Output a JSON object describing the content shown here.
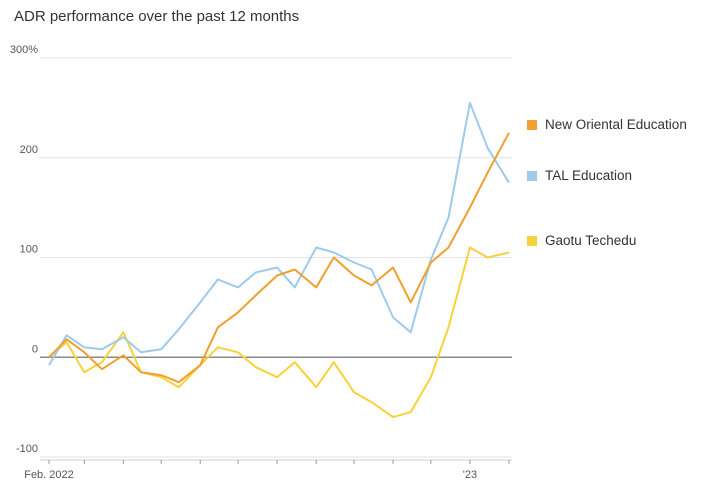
{
  "chart_data": {
    "type": "line",
    "title": "ADR performance over the past 12 months",
    "xlabel": "",
    "ylabel": "",
    "x_tick_labels": [
      "Feb. 2022",
      "'23"
    ],
    "y_tick_labels": [
      "300%",
      "200",
      "100",
      "0",
      "-100"
    ],
    "y_ticks": [
      300,
      200,
      100,
      0,
      -100
    ],
    "ylim": [
      -100,
      300
    ],
    "grid": true,
    "legend_position": "right",
    "x": [
      "2022-02-01",
      "2022-02-15",
      "2022-03-01",
      "2022-03-15",
      "2022-04-01",
      "2022-04-15",
      "2022-05-01",
      "2022-05-15",
      "2022-06-01",
      "2022-06-15",
      "2022-07-01",
      "2022-07-15",
      "2022-08-01",
      "2022-08-15",
      "2022-09-01",
      "2022-09-15",
      "2022-10-01",
      "2022-10-15",
      "2022-11-01",
      "2022-11-15",
      "2022-12-01",
      "2022-12-15",
      "2023-01-01",
      "2023-01-15",
      "2023-02-01"
    ],
    "series": [
      {
        "name": "New Oriental Education",
        "color": "#f0a02e",
        "values": [
          0,
          18,
          5,
          -12,
          2,
          -15,
          -18,
          -25,
          -8,
          30,
          45,
          62,
          82,
          88,
          70,
          100,
          82,
          72,
          90,
          55,
          95,
          110,
          150,
          185,
          225
        ]
      },
      {
        "name": "TAL Education",
        "color": "#9ecbea",
        "values": [
          -8,
          22,
          10,
          8,
          20,
          5,
          8,
          28,
          55,
          78,
          70,
          85,
          90,
          70,
          110,
          105,
          95,
          88,
          40,
          25,
          98,
          140,
          255,
          210,
          175
        ]
      },
      {
        "name": "Gaotu Techedu",
        "color": "#f7d23c",
        "values": [
          0,
          15,
          -15,
          -5,
          25,
          -15,
          -20,
          -30,
          -8,
          10,
          5,
          -10,
          -20,
          -5,
          -30,
          -5,
          -35,
          -45,
          -60,
          -55,
          -20,
          30,
          110,
          100,
          105
        ]
      }
    ]
  }
}
